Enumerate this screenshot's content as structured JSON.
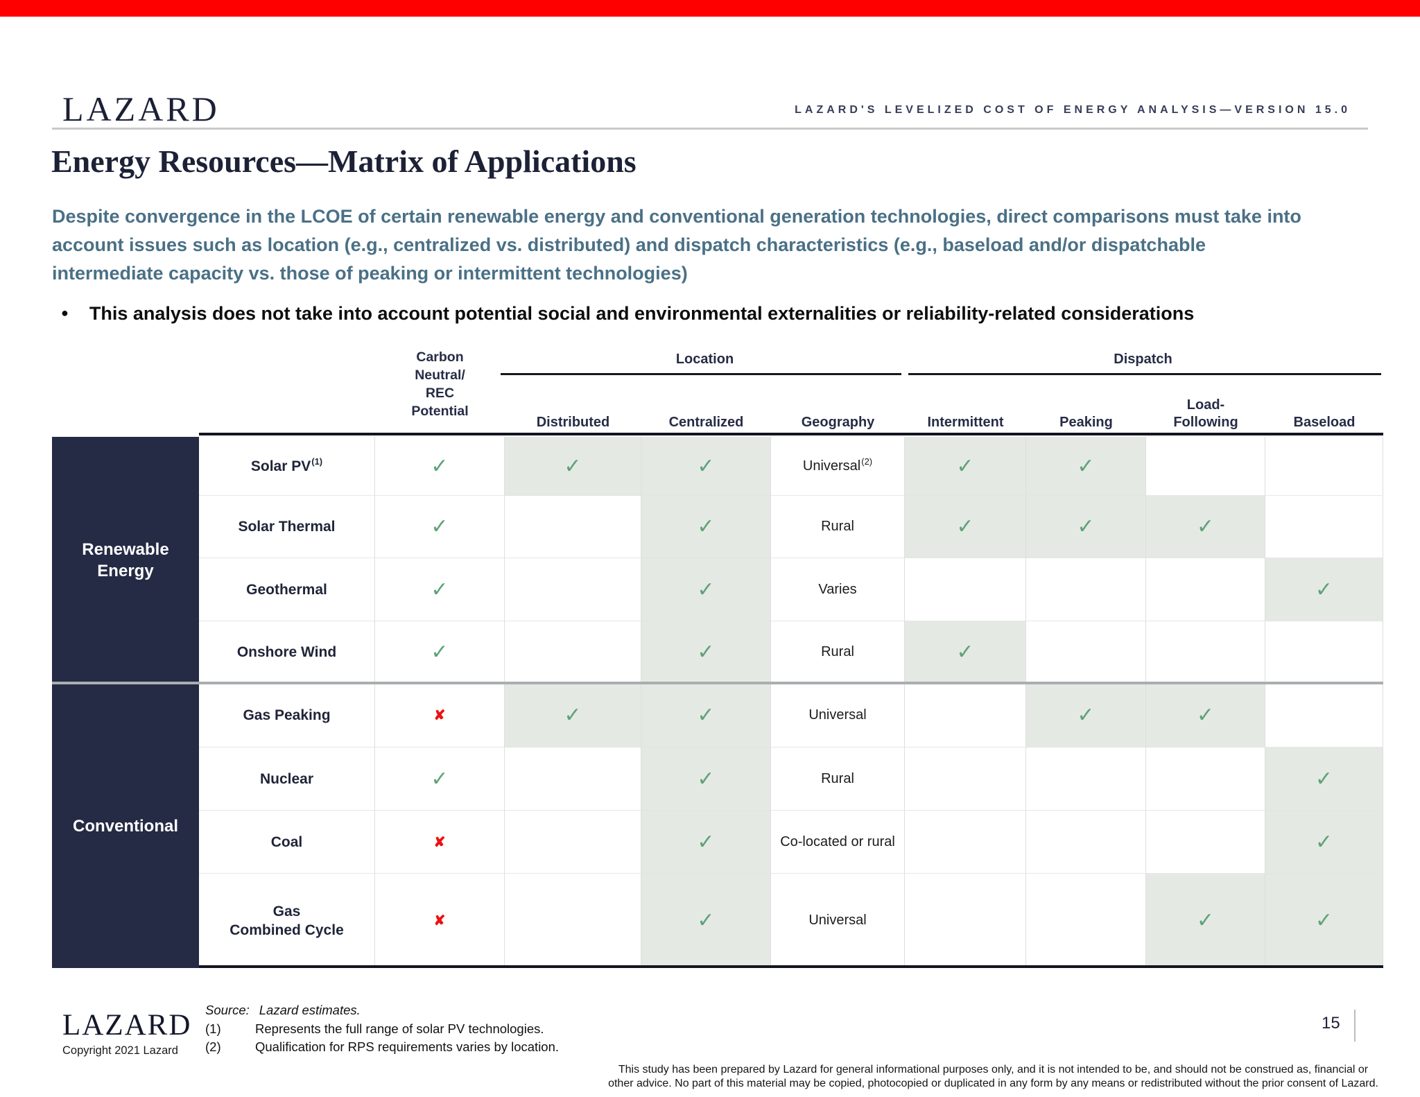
{
  "header": {
    "brand": "LAZARD",
    "right_title": "LAZARD'S LEVELIZED COST OF ENERGY ANALYSIS—VERSION 15.0"
  },
  "page": {
    "title": "Energy Resources—Matrix of Applications",
    "subtitle_lines": [
      "Despite convergence in the LCOE of certain renewable energy and conventional generation technologies, direct comparisons must take into",
      "account issues such as location (e.g., centralized vs. distributed) and dispatch characteristics (e.g., baseload and/or dispatchable",
      "intermediate capacity vs. those of peaking or intermittent technologies)"
    ],
    "bullet_icon": "●",
    "bullet": "This analysis does not take into account potential social and environmental externalities or reliability-related considerations"
  },
  "table": {
    "carbon_header": "Carbon\nNeutral/\nREC\nPotential",
    "group_location": "Location",
    "group_dispatch": "Dispatch",
    "location_cols": [
      "Distributed",
      "Centralized",
      "Geography"
    ],
    "dispatch_cols": [
      "Intermittent",
      "Peaking",
      "Load-\nFollowing",
      "Baseload"
    ],
    "categories": [
      {
        "label": "Renewable\nEnergy"
      },
      {
        "label": "Conventional"
      }
    ],
    "check_glyph": "✓",
    "x_glyph": "✘",
    "rows": [
      {
        "tech": "Solar PV",
        "tech_sup": "(1)",
        "carbon": "check",
        "distributed": {
          "mark": "check",
          "shaded": true
        },
        "centralized": {
          "mark": "check",
          "shaded": true
        },
        "geography": {
          "text": "Universal",
          "sup": "(2)"
        },
        "intermittent": {
          "mark": "check",
          "shaded": true
        },
        "peaking": {
          "mark": "check",
          "shaded": true
        },
        "load_following": {
          "mark": "",
          "shaded": false
        },
        "baseload": {
          "mark": "",
          "shaded": false
        }
      },
      {
        "tech": "Solar Thermal",
        "tech_sup": "",
        "carbon": "check",
        "distributed": {
          "mark": "",
          "shaded": false
        },
        "centralized": {
          "mark": "check",
          "shaded": true
        },
        "geography": {
          "text": "Rural",
          "sup": ""
        },
        "intermittent": {
          "mark": "check",
          "shaded": true
        },
        "peaking": {
          "mark": "check",
          "shaded": true
        },
        "load_following": {
          "mark": "check",
          "shaded": true
        },
        "baseload": {
          "mark": "",
          "shaded": false
        }
      },
      {
        "tech": "Geothermal",
        "tech_sup": "",
        "carbon": "check",
        "distributed": {
          "mark": "",
          "shaded": false
        },
        "centralized": {
          "mark": "check",
          "shaded": true
        },
        "geography": {
          "text": "Varies",
          "sup": ""
        },
        "intermittent": {
          "mark": "",
          "shaded": false
        },
        "peaking": {
          "mark": "",
          "shaded": false
        },
        "load_following": {
          "mark": "",
          "shaded": false
        },
        "baseload": {
          "mark": "check",
          "shaded": true
        }
      },
      {
        "tech": "Onshore Wind",
        "tech_sup": "",
        "carbon": "check",
        "distributed": {
          "mark": "",
          "shaded": false
        },
        "centralized": {
          "mark": "check",
          "shaded": true
        },
        "geography": {
          "text": "Rural",
          "sup": ""
        },
        "intermittent": {
          "mark": "check",
          "shaded": true
        },
        "peaking": {
          "mark": "",
          "shaded": false
        },
        "load_following": {
          "mark": "",
          "shaded": false
        },
        "baseload": {
          "mark": "",
          "shaded": false
        }
      },
      {
        "tech": "Gas Peaking",
        "tech_sup": "",
        "carbon": "x",
        "distributed": {
          "mark": "check",
          "shaded": true
        },
        "centralized": {
          "mark": "check",
          "shaded": true
        },
        "geography": {
          "text": "Universal",
          "sup": ""
        },
        "intermittent": {
          "mark": "",
          "shaded": false
        },
        "peaking": {
          "mark": "check",
          "shaded": true
        },
        "load_following": {
          "mark": "check",
          "shaded": true
        },
        "baseload": {
          "mark": "",
          "shaded": false
        }
      },
      {
        "tech": "Nuclear",
        "tech_sup": "",
        "carbon": "check",
        "distributed": {
          "mark": "",
          "shaded": false
        },
        "centralized": {
          "mark": "check",
          "shaded": true
        },
        "geography": {
          "text": "Rural",
          "sup": ""
        },
        "intermittent": {
          "mark": "",
          "shaded": false
        },
        "peaking": {
          "mark": "",
          "shaded": false
        },
        "load_following": {
          "mark": "",
          "shaded": false
        },
        "baseload": {
          "mark": "check",
          "shaded": true
        }
      },
      {
        "tech": "Coal",
        "tech_sup": "",
        "carbon": "x",
        "distributed": {
          "mark": "",
          "shaded": false
        },
        "centralized": {
          "mark": "check",
          "shaded": true
        },
        "geography": {
          "text": "Co-located or rural",
          "sup": ""
        },
        "intermittent": {
          "mark": "",
          "shaded": false
        },
        "peaking": {
          "mark": "",
          "shaded": false
        },
        "load_following": {
          "mark": "",
          "shaded": false
        },
        "baseload": {
          "mark": "check",
          "shaded": true
        }
      },
      {
        "tech": "Gas\nCombined Cycle",
        "tech_sup": "",
        "carbon": "x",
        "distributed": {
          "mark": "",
          "shaded": false
        },
        "centralized": {
          "mark": "check",
          "shaded": true
        },
        "geography": {
          "text": "Universal",
          "sup": ""
        },
        "intermittent": {
          "mark": "",
          "shaded": false
        },
        "peaking": {
          "mark": "",
          "shaded": false
        },
        "load_following": {
          "mark": "check",
          "shaded": true
        },
        "baseload": {
          "mark": "check",
          "shaded": true
        }
      }
    ]
  },
  "footer": {
    "brand": "LAZARD",
    "copyright": "Copyright 2021 Lazard",
    "source_label": "Source:",
    "source_value": "Lazard estimates.",
    "notes": [
      {
        "num": "(1)",
        "text": "Represents the full range of solar PV technologies."
      },
      {
        "num": "(2)",
        "text": "Qualification for RPS requirements varies by location."
      }
    ],
    "page_number": "15",
    "disclaimer_lines": [
      "This study has been prepared by Lazard for general informational purposes only, and it is not intended to be, and should not be construed as, financial or",
      "other advice. No part of this material may be copied, photocopied or duplicated in any form by any means or redistributed without the prior consent of Lazard."
    ]
  },
  "colors": {
    "accent_red": "#FE0000",
    "navy": "#252A45",
    "check_green": "#5DA378",
    "x_red": "#EE1111",
    "cell_shade": "#E5E9E4",
    "subtitle_blue": "#4A7086"
  }
}
